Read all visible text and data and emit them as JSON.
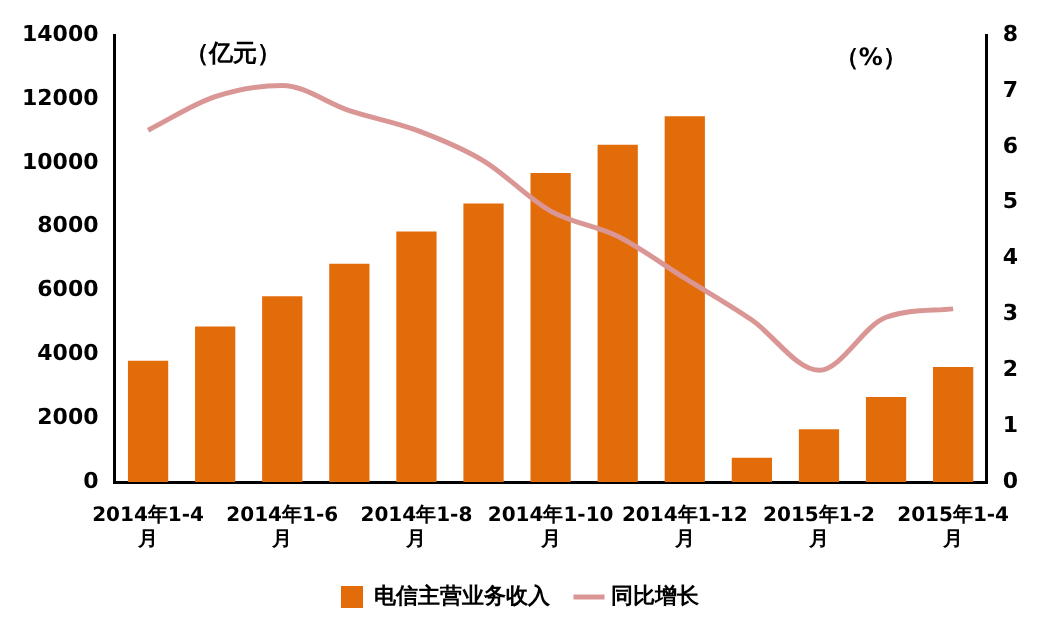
{
  "chart_data": {
    "type": "bar",
    "categories": [
      "2014年1-4月",
      null,
      "2014年1-6月",
      null,
      "2014年1-8月",
      null,
      "2014年1-10月",
      null,
      "2014年1-12月",
      null,
      "2015年1-2月",
      null,
      "2015年1-4月"
    ],
    "series": [
      {
        "name": "电信主营业务收入",
        "color": "#e36c0a",
        "values": [
          3800,
          4870,
          5820,
          6840,
          7850,
          8730,
          9680,
          10570,
          11460,
          760,
          1650,
          2660,
          3600
        ]
      },
      {
        "name": "同比增长",
        "type": "line",
        "axis": "y2",
        "color": "#d99694",
        "values": [
          6.3,
          6.9,
          7.1,
          6.65,
          6.3,
          5.75,
          4.85,
          4.4,
          3.65,
          2.9,
          2.0,
          2.95,
          3.1
        ]
      }
    ],
    "ylabel": "（亿元）",
    "y2label": "（%）",
    "ylim": [
      0,
      14000
    ],
    "yticks": [
      0,
      2000,
      4000,
      6000,
      8000,
      10000,
      12000,
      14000
    ],
    "y2lim": [
      0,
      8
    ],
    "y2ticks": [
      0,
      1,
      2,
      3,
      4,
      5,
      6,
      7,
      8
    ],
    "grid": false,
    "legend": "bottom",
    "marker": "none"
  }
}
